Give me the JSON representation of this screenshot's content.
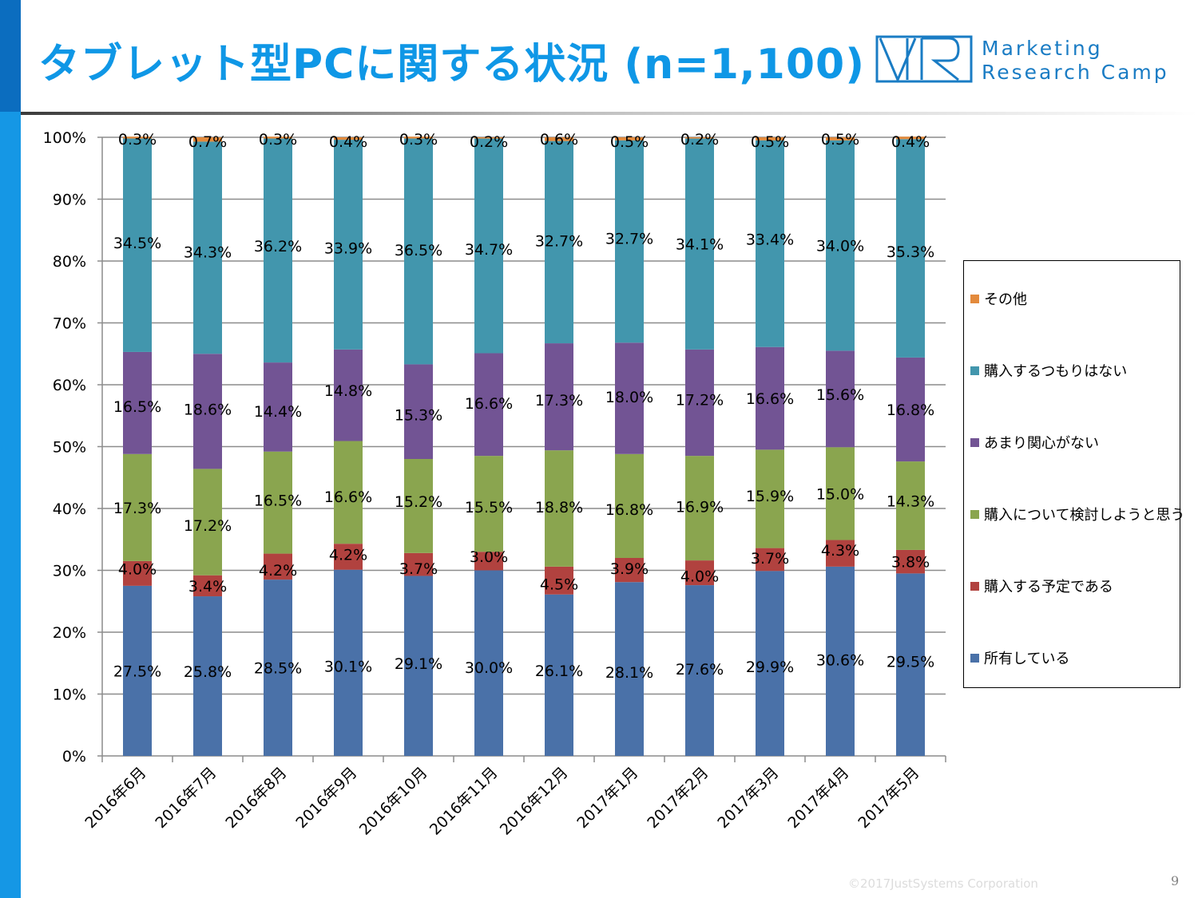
{
  "header": {
    "title": "タブレット型PCに関する状況 (n=1,100)",
    "logo_line1": "Marketing",
    "logo_line2": "Research Camp"
  },
  "colors": {
    "owned": "#4a71a8",
    "plan": "#b1423f",
    "considering": "#8aa54f",
    "not_interested": "#725494",
    "no_intent": "#4296ad",
    "other": "#e38a3c",
    "title": "#0f97e6",
    "sidebar": "#1597e5"
  },
  "chart_data": {
    "type": "stacked_bar_100",
    "categories": [
      "2016年6月",
      "2016年7月",
      "2016年8月",
      "2016年9月",
      "2016年10月",
      "2016年11月",
      "2016年12月",
      "2017年1月",
      "2017年2月",
      "2017年3月",
      "2017年4月",
      "2017年5月"
    ],
    "y_ticks": [
      "0%",
      "10%",
      "20%",
      "30%",
      "40%",
      "50%",
      "60%",
      "70%",
      "80%",
      "90%",
      "100%"
    ],
    "ylim": [
      0,
      100
    ],
    "grid": true,
    "legend_position": "right",
    "series": [
      {
        "key": "owned",
        "name": "所有している",
        "values": [
          27.5,
          25.8,
          28.5,
          30.1,
          29.1,
          30.0,
          26.1,
          28.1,
          27.6,
          29.9,
          30.6,
          29.5
        ],
        "labels": [
          "27.5%",
          "25.8%",
          "28.5%",
          "30.1%",
          "29.1%",
          "30.0%",
          "26.1%",
          "28.1%",
          "27.6%",
          "29.9%",
          "30.6%",
          "29.5%"
        ]
      },
      {
        "key": "plan",
        "name": "購入する予定である",
        "values": [
          4.0,
          3.4,
          4.2,
          4.2,
          3.7,
          3.0,
          4.5,
          3.9,
          4.0,
          3.7,
          4.3,
          3.8
        ],
        "labels": [
          "4.0%",
          "3.4%",
          "4.2%",
          "4.2%",
          "3.7%",
          "3.0%",
          "4.5%",
          "3.9%",
          "4.0%",
          "3.7%",
          "4.3%",
          "3.8%"
        ]
      },
      {
        "key": "considering",
        "name": "購入について検討しようと思う",
        "values": [
          17.3,
          17.2,
          16.5,
          16.6,
          15.2,
          15.5,
          18.8,
          16.8,
          16.9,
          15.9,
          15.0,
          14.3
        ],
        "labels": [
          "17.3%",
          "17.2%",
          "16.5%",
          "16.6%",
          "15.2%",
          "15.5%",
          "18.8%",
          "16.8%",
          "16.9%",
          "15.9%",
          "15.0%",
          "14.3%"
        ]
      },
      {
        "key": "not_interested",
        "name": "あまり関心がない",
        "values": [
          16.5,
          18.6,
          14.4,
          14.8,
          15.3,
          16.6,
          17.3,
          18.0,
          17.2,
          16.6,
          15.6,
          16.8
        ],
        "labels": [
          "16.5%",
          "18.6%",
          "14.4%",
          "14.8%",
          "15.3%",
          "16.6%",
          "17.3%",
          "18.0%",
          "17.2%",
          "16.6%",
          "15.6%",
          "16.8%"
        ]
      },
      {
        "key": "no_intent",
        "name": "購入するつもりはない",
        "values": [
          34.5,
          34.3,
          36.2,
          33.9,
          36.5,
          34.7,
          32.7,
          32.7,
          34.1,
          33.4,
          34.0,
          35.3
        ],
        "labels": [
          "34.5%",
          "34.3%",
          "36.2%",
          "33.9%",
          "36.5%",
          "34.7%",
          "32.7%",
          "32.7%",
          "34.1%",
          "33.4%",
          "34.0%",
          "35.3%"
        ]
      },
      {
        "key": "other",
        "name": "その他",
        "values": [
          0.3,
          0.7,
          0.3,
          0.4,
          0.3,
          0.2,
          0.6,
          0.5,
          0.2,
          0.5,
          0.5,
          0.4
        ],
        "labels": [
          "0.3%",
          "0.7%",
          "0.3%",
          "0.4%",
          "0.3%",
          "0.2%",
          "0.6%",
          "0.5%",
          "0.2%",
          "0.5%",
          "0.5%",
          "0.4%"
        ]
      }
    ],
    "legend_order": [
      "other",
      "no_intent",
      "not_interested",
      "considering",
      "plan",
      "owned"
    ]
  },
  "footer": {
    "copyright": "©2017JustSystems Corporation",
    "page_number": "9"
  }
}
